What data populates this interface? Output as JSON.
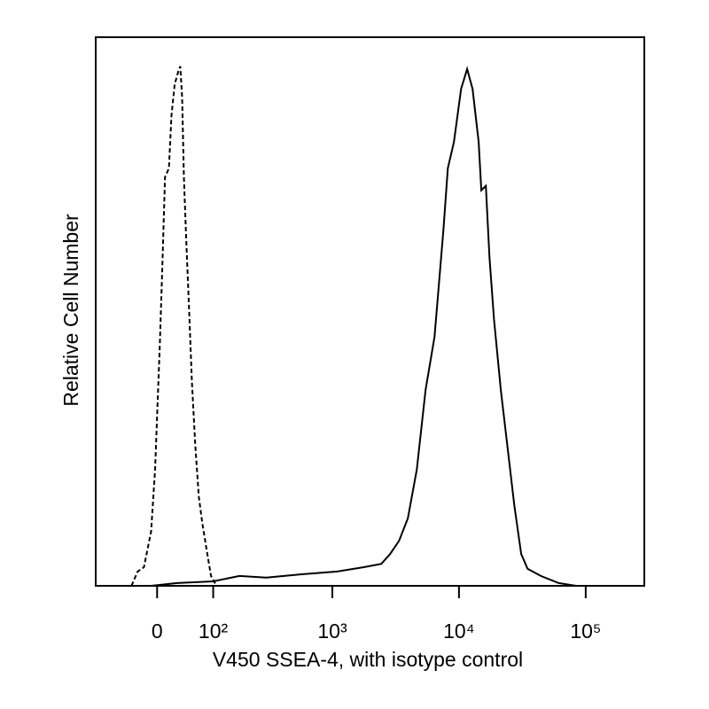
{
  "chart_data": {
    "type": "histogram-line",
    "xlabel": "V450 SSEA-4, with isotype control",
    "ylabel": "Relative Cell Number",
    "xscale": "biexponential",
    "xlim": [
      -113,
      290000
    ],
    "ylim": [
      0,
      100
    ],
    "xticks": [
      0,
      {
        "value": 100,
        "label": "10²"
      },
      {
        "value": 1000,
        "label": "10³"
      },
      {
        "value": 10000,
        "label": "10⁴"
      },
      {
        "value": 100000,
        "label": "10⁵"
      }
    ],
    "series": [
      {
        "color": "#000000",
        "linestyle": "dashed",
        "x": [
          -40,
          -30,
          -20,
          -9,
          -3,
          1,
          4,
          8,
          12,
          18,
          22,
          27,
          33,
          36,
          39,
          42,
          46,
          51,
          56,
          62,
          69,
          76,
          85,
          95,
          108
        ],
        "y": [
          0,
          2.6,
          3.4,
          9.9,
          21.2,
          34.1,
          43.8,
          58.3,
          74.5,
          76.1,
          85.8,
          91.4,
          93.9,
          94.7,
          89,
          74.5,
          63.2,
          50.2,
          37.3,
          26,
          16.3,
          11.5,
          6.6,
          1.8,
          0
        ]
      },
      {
        "color": "#000000",
        "linestyle": "solid",
        "x": [
          -9,
          31,
          99,
          176,
          296,
          569,
          1090,
          1770,
          2440,
          2860,
          3370,
          3950,
          4650,
          5450,
          6410,
          7530,
          8170,
          9130,
          10400,
          11600,
          12800,
          14300,
          15000,
          16300,
          17400,
          18900,
          21400,
          24400,
          27300,
          31000,
          34800,
          44300,
          61200,
          83800
        ],
        "y": [
          0,
          0.5,
          0.8,
          1.8,
          1.5,
          2.1,
          2.6,
          3.4,
          4.0,
          5.8,
          8.2,
          12.3,
          21.2,
          35.7,
          45.4,
          64.8,
          76.1,
          80.9,
          90.6,
          94.2,
          90.6,
          80.9,
          72.1,
          72.9,
          59.9,
          48.6,
          35.7,
          24.4,
          14.7,
          5.8,
          3.1,
          1.8,
          0.5,
          0
        ]
      }
    ]
  }
}
